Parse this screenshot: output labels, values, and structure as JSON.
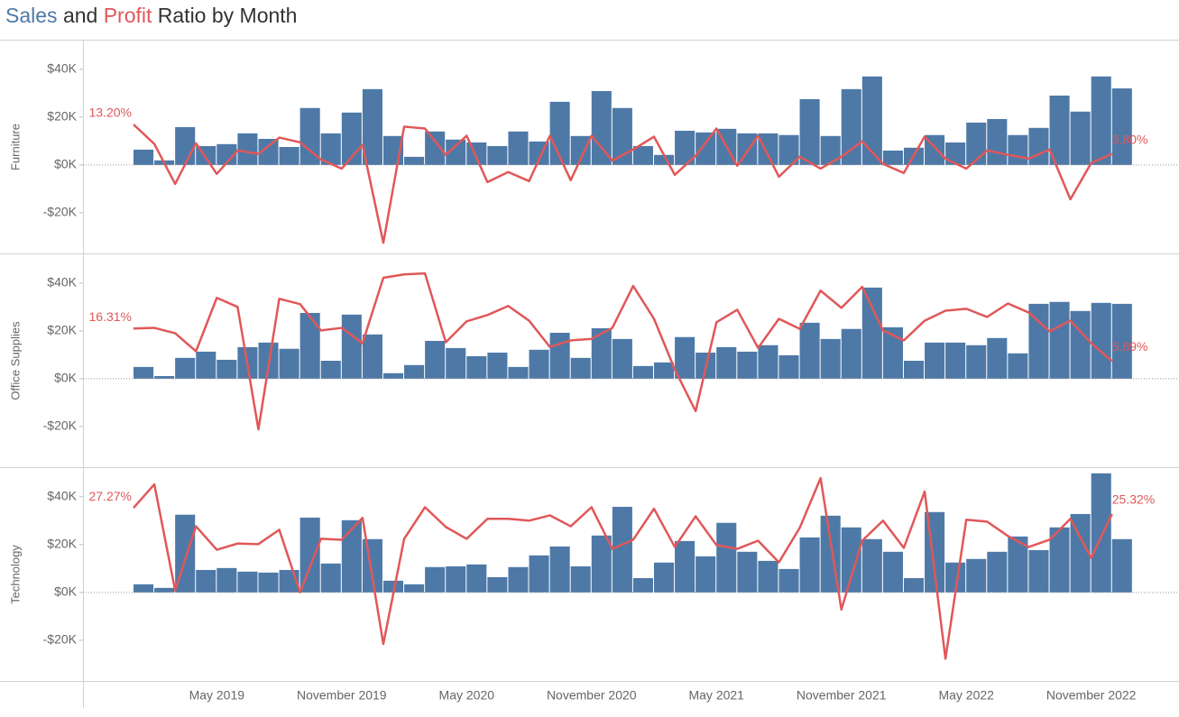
{
  "chart_data": {
    "type": "bar",
    "title_parts": [
      "Sales",
      "and",
      "Profit",
      "Ratio by Month"
    ],
    "categories": [
      null,
      null,
      null,
      null,
      "May 2019",
      null,
      null,
      null,
      null,
      null,
      "November 2019",
      null,
      null,
      null,
      null,
      null,
      "May 2020",
      null,
      null,
      null,
      null,
      null,
      "November 2020",
      null,
      null,
      null,
      null,
      null,
      "May 2021",
      null,
      null,
      null,
      null,
      null,
      "November 2021",
      null,
      null,
      null,
      null,
      null,
      "May 2022",
      null,
      null,
      null,
      null,
      null,
      "November 2022",
      null
    ],
    "ylim": [
      -37000,
      52000
    ],
    "yticks": [
      {
        "value": -20000,
        "label": "-$20K"
      },
      {
        "value": 0,
        "label": "$0K"
      },
      {
        "value": 20000,
        "label": "$20K"
      },
      {
        "value": 40000,
        "label": "$40K"
      }
    ],
    "y2lim": [
      -28,
      40
    ],
    "panels": [
      {
        "label": "Furniture",
        "series": [
          {
            "type": "bar",
            "color": "#4e79a7",
            "values": [
              6400,
              1900,
              15800,
              7900,
              8700,
              13200,
              10900,
              7500,
              23800,
              13200,
              21900,
              31700,
              12100,
              3400,
              14000,
              10600,
              9400,
              7900,
              14000,
              9800,
              26400,
              12100,
              30900,
              23800,
              7900,
              4200,
              14300,
              13600,
              15100,
              13200,
              13200,
              12500,
              27500,
              12100,
              31700,
              37000,
              6000,
              7200,
              12500,
              9400,
              17700,
              19200,
              12500,
              15500,
              29000,
              22300,
              37000,
              32000
            ]
          },
          {
            "type": "line",
            "axis": "y2",
            "color": "#e15759",
            "values": [
              13.2,
              7.0,
              -5.8,
              7.2,
              -2.6,
              4.9,
              3.8,
              9.0,
              7.5,
              2.0,
              -0.9,
              6.7,
              -24.6,
              12.5,
              11.9,
              3.5,
              9.6,
              -5.2,
              -2.0,
              -4.9,
              9.6,
              -4.6,
              9.6,
              1.7,
              5.2,
              9.3,
              -2.9,
              3.2,
              11.9,
              0,
              9.6,
              -3.5,
              2.9,
              -0.9,
              2.9,
              7.8,
              0.6,
              -2.3,
              9.3,
              2.3,
              -0.9,
              4.9,
              3.5,
              2.3,
              5.2,
              -10.7,
              0.9,
              3.8
            ],
            "value_labels": [
              "13.20%",
              null,
              null,
              null,
              null,
              null,
              null,
              null,
              null,
              null,
              null,
              null,
              null,
              null,
              null,
              null,
              null,
              null,
              null,
              null,
              null,
              null,
              null,
              null,
              null,
              null,
              null,
              null,
              null,
              null,
              null,
              null,
              null,
              null,
              null,
              null,
              null,
              null,
              null,
              null,
              null,
              null,
              null,
              null,
              null,
              null,
              null,
              "3.80%"
            ]
          }
        ]
      },
      {
        "label": "Office Supplies",
        "series": [
          {
            "type": "bar",
            "color": "#4e79a7",
            "values": [
              4900,
              1100,
              8700,
              11300,
              7900,
              13200,
              15100,
              12500,
              27500,
              7500,
              26800,
              18500,
              2300,
              5700,
              15800,
              12800,
              9400,
              10900,
              4900,
              12100,
              19200,
              8700,
              21100,
              16600,
              5300,
              6800,
              17400,
              10900,
              13200,
              11300,
              14000,
              9800,
              23400,
              16600,
              20800,
              38100,
              21500,
              7500,
              15100,
              15100,
              14000,
              17000,
              10600,
              31300,
              32100,
              28300,
              31700,
              31300
            ]
          },
          {
            "type": "line",
            "axis": "y2",
            "color": "#e15759",
            "values": [
              16.31,
              16.5,
              14.8,
              9.0,
              26.1,
              23.2,
              -15.9,
              25.8,
              24.1,
              15.7,
              16.5,
              11.6,
              32.5,
              33.6,
              33.9,
              11.9,
              18.6,
              20.6,
              23.5,
              18.8,
              10.4,
              12.5,
              13.0,
              16.5,
              29.9,
              19.4,
              3.2,
              -10.1,
              18.3,
              22.3,
              10.1,
              19.4,
              16.2,
              28.4,
              22.9,
              29.6,
              15.7,
              12.5,
              18.8,
              22.0,
              22.6,
              20.0,
              24.3,
              21.4,
              15.4,
              18.8,
              11.6,
              5.89
            ],
            "value_labels": [
              "16.31%",
              null,
              null,
              null,
              null,
              null,
              null,
              null,
              null,
              null,
              null,
              null,
              null,
              null,
              null,
              null,
              null,
              null,
              null,
              null,
              null,
              null,
              null,
              null,
              null,
              null,
              null,
              null,
              null,
              null,
              null,
              null,
              null,
              null,
              null,
              null,
              null,
              null,
              null,
              null,
              null,
              null,
              null,
              null,
              null,
              null,
              null,
              "5.89%"
            ]
          }
        ]
      },
      {
        "label": "Technology",
        "series": [
          {
            "type": "bar",
            "color": "#4e79a7",
            "values": [
              3400,
              1900,
              32500,
              9400,
              10200,
              8700,
              8300,
              9400,
              31300,
              12100,
              30200,
              22300,
              4900,
              3400,
              10600,
              10900,
              11700,
              6400,
              10600,
              15500,
              19200,
              10900,
              23800,
              35800,
              6000,
              12500,
              21500,
              15100,
              29100,
              17000,
              13200,
              9800,
              23000,
              32100,
              27200,
              22300,
              17000,
              6000,
              33600,
              12500,
              14000,
              17000,
              23400,
              17700,
              27200,
              32800,
              49800,
              22300
            ]
          },
          {
            "type": "line",
            "axis": "y2",
            "color": "#e15759",
            "values": [
              27.27,
              34.8,
              0.9,
              21.4,
              13.9,
              15.9,
              15.7,
              20.3,
              0.3,
              17.4,
              17.1,
              24.1,
              -16.2,
              17.4,
              27.5,
              21.2,
              17.4,
              23.8,
              23.8,
              23.2,
              24.9,
              21.4,
              27.5,
              14.2,
              17.1,
              27.0,
              14.8,
              24.6,
              15.4,
              14.2,
              16.8,
              9.9,
              20.9,
              36.8,
              -5.2,
              16.8,
              23.2,
              14.5,
              32.5,
              -20.9,
              23.5,
              22.9,
              18.3,
              14.8,
              17.1,
              23.8,
              11.3,
              25.32
            ],
            "value_labels": [
              "27.27%",
              null,
              null,
              null,
              null,
              null,
              null,
              null,
              null,
              null,
              null,
              null,
              null,
              null,
              null,
              null,
              null,
              null,
              null,
              null,
              null,
              null,
              null,
              null,
              null,
              null,
              null,
              null,
              null,
              null,
              null,
              null,
              null,
              null,
              null,
              null,
              null,
              null,
              null,
              null,
              null,
              null,
              null,
              null,
              null,
              null,
              null,
              "25.32%"
            ]
          }
        ]
      }
    ]
  }
}
